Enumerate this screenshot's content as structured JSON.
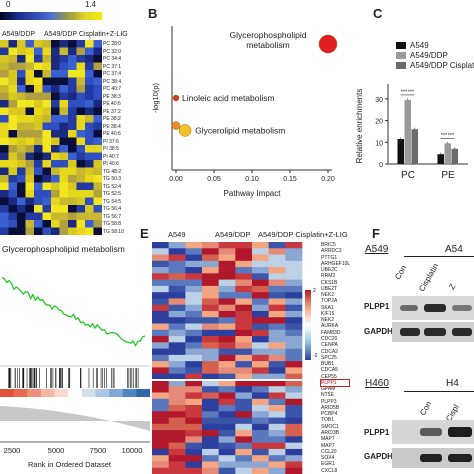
{
  "panel_a": {
    "scale_min": "0",
    "scale_max": "1.4",
    "group_label_1": "A549/DDP",
    "group_label_2": "A549/DDP Cisplatin+Z-LIG",
    "lipids": [
      "PC 28:0",
      "PC 32:0",
      "PC 34:4",
      "PC 37:1",
      "PC 37:4",
      "PC 38:4",
      "PC 40:7",
      "PE 38:3",
      "PE 40:6",
      "PE 37:2",
      "PE 38:2",
      "PE 38:4",
      "PE 40:6",
      "PI 37:6",
      "PI 38:5",
      "PI 40:7",
      "PI 40:6",
      "TG 48:2",
      "TG 50:3",
      "TG 52:4",
      "TG 52:5",
      "TG 54:5",
      "TG 56:4",
      "TG 56:7",
      "TG 58:8",
      "TG 58:10"
    ]
  },
  "panel_b": {
    "letter": "B",
    "chart_data": {
      "type": "scatter",
      "xlabel": "Pathway Impact",
      "ylabel": "-log10(p)",
      "xlim": [
        0,
        0.2
      ],
      "x_ticks": [
        "0.00",
        "0.05",
        "0.10",
        "0.15",
        "0.20"
      ],
      "points": [
        {
          "label": "Glycerophospholipid metabolism",
          "x": 0.2,
          "y": 10.5,
          "color": "#e02020"
        },
        {
          "label": "Linoleic acid metabolism",
          "x": 0.0,
          "y": 6.0,
          "color": "#d13a1c"
        },
        {
          "label": "Glycerolipid metabolism",
          "x": 0.012,
          "y": 3.3,
          "color": "#f2c22a"
        },
        {
          "label": "",
          "x": 0.0,
          "y": 3.7,
          "color": "#f08a2a"
        }
      ]
    }
  },
  "panel_c": {
    "letter": "C",
    "chart_data": {
      "type": "bar",
      "ylabel": "Relative enrichments",
      "categories": [
        "PC",
        "PE"
      ],
      "series": [
        {
          "name": "A549",
          "values": [
            11.5,
            4.5
          ],
          "color": "#111111"
        },
        {
          "name": "A549/DDP",
          "values": [
            29.5,
            9.5
          ],
          "color": "#9a9a9a"
        },
        {
          "name": "A549/DDP Cisplatin",
          "values": [
            16.0,
            7.0
          ],
          "color": "#6a6a6a"
        }
      ],
      "ylim": [
        0,
        35
      ],
      "y_ticks": [
        "0",
        "10",
        "20",
        "30"
      ],
      "sig": [
        "***",
        "***",
        "***",
        "***"
      ]
    }
  },
  "panel_d": {
    "title": "Glycerophospholipid metabolism",
    "xlabel": "Rank in Ordered Dataset",
    "x_ticks": [
      "2500",
      "5000",
      "7500",
      "10000"
    ]
  },
  "panel_e": {
    "letter": "E",
    "group_1": "A549",
    "group_2": "A549/DDP",
    "group_3": "A549/DDP Cisplatin+Z-LIG",
    "scale_max": "2",
    "scale_min": "-2",
    "genes": [
      "BRIC5",
      "ARRDC3",
      "PTTG1",
      "ARHGEF10L",
      "UBE2C",
      "RRM2",
      "CKS1B",
      "UBE2T",
      "NEK2",
      "TOP2A",
      "SKA1",
      "KIF15",
      "NEK2",
      "AURKA",
      "FAM83D",
      "CDC20",
      "CENPA",
      "CDCA2",
      "SPC25",
      "BUB1",
      "CDCA5",
      "CEP55",
      "PLPP1",
      "GPAM",
      "NT5E",
      "PLPP3",
      "ARID5B",
      "PCBP4",
      "TOB1",
      "SMOC1",
      "ARID3B",
      "MAP7",
      "MAP7",
      "CCL20",
      "SOX4",
      "EGR1",
      "CXCL8"
    ],
    "highlight_gene": "PLPP1"
  },
  "panel_f": {
    "letter": "F",
    "cell_a549": "A549",
    "cell_a549_short": "A54",
    "cell_h460": "H460",
    "cell_h460_short": "H4",
    "lane_con": "Con",
    "lane_cisplatin": "Cisplatin",
    "lane_z": "Z",
    "lane_cispl": "Cispl",
    "row_plpp1": "PLPP1",
    "row_gapdh": "GAPDH"
  }
}
